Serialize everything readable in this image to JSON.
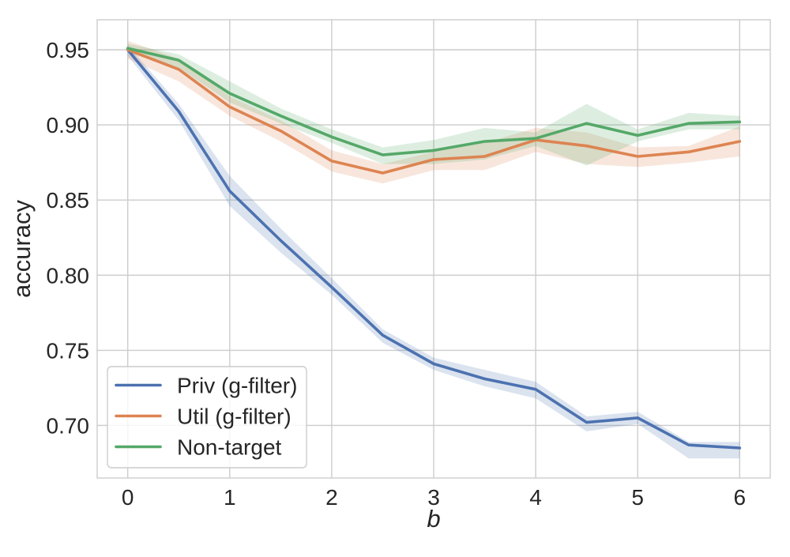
{
  "chart_data": {
    "type": "line",
    "title": "",
    "xlabel": "b",
    "ylabel": "accuracy",
    "x": [
      0,
      0.5,
      1,
      1.5,
      2,
      2.5,
      3,
      3.5,
      4,
      4.5,
      5,
      5.5,
      6
    ],
    "xlim": [
      -0.3,
      6.3
    ],
    "ylim": [
      0.665,
      0.97
    ],
    "xticks": [
      0,
      1,
      2,
      3,
      4,
      5,
      6
    ],
    "yticks": [
      0.7,
      0.75,
      0.8,
      0.85,
      0.9,
      0.95
    ],
    "grid": true,
    "legend_position": "lower-left",
    "series": [
      {
        "name": "Priv (g-filter)",
        "color": "#4C72B0",
        "values": [
          0.95,
          0.909,
          0.856,
          0.823,
          0.792,
          0.76,
          0.741,
          0.731,
          0.724,
          0.702,
          0.705,
          0.687,
          0.685
        ],
        "band_lo": [
          0.946,
          0.903,
          0.846,
          0.815,
          0.787,
          0.755,
          0.737,
          0.726,
          0.718,
          0.696,
          0.701,
          0.678,
          0.678
        ],
        "band_hi": [
          0.953,
          0.914,
          0.866,
          0.831,
          0.798,
          0.764,
          0.745,
          0.737,
          0.729,
          0.706,
          0.709,
          0.689,
          0.689
        ]
      },
      {
        "name": "Util (g-filter)",
        "color": "#DD8452",
        "values": [
          0.95,
          0.937,
          0.912,
          0.896,
          0.876,
          0.868,
          0.877,
          0.879,
          0.89,
          0.886,
          0.879,
          0.882,
          0.889
        ],
        "band_lo": [
          0.944,
          0.929,
          0.906,
          0.889,
          0.869,
          0.861,
          0.87,
          0.87,
          0.882,
          0.874,
          0.872,
          0.875,
          0.879
        ],
        "band_hi": [
          0.956,
          0.944,
          0.919,
          0.903,
          0.883,
          0.874,
          0.882,
          0.888,
          0.898,
          0.895,
          0.885,
          0.886,
          0.899
        ]
      },
      {
        "name": "Non-target",
        "color": "#55A868",
        "values": [
          0.951,
          0.943,
          0.921,
          0.906,
          0.892,
          0.88,
          0.883,
          0.889,
          0.891,
          0.901,
          0.893,
          0.901,
          0.902
        ],
        "band_lo": [
          0.948,
          0.938,
          0.915,
          0.901,
          0.888,
          0.874,
          0.874,
          0.877,
          0.886,
          0.873,
          0.889,
          0.897,
          0.897
        ],
        "band_hi": [
          0.954,
          0.947,
          0.929,
          0.911,
          0.897,
          0.885,
          0.89,
          0.898,
          0.895,
          0.914,
          0.897,
          0.908,
          0.906
        ]
      }
    ],
    "style": {
      "background": "#ffffff",
      "grid_color": "#cccccc",
      "spine_color": "#cccccc",
      "text_color": "#262626",
      "band_alpha": 0.2,
      "legend_face": "rgba(255,255,255,0.8)",
      "legend_edge": "#cccccc"
    }
  }
}
